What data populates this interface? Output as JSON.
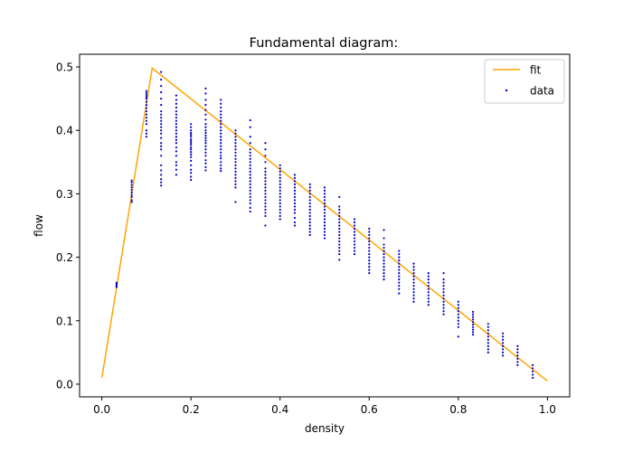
{
  "chart_data": {
    "type": "scatter",
    "title": "Fundamental diagram:",
    "xlabel": "density",
    "ylabel": "flow",
    "xlim": [
      -0.05,
      1.05
    ],
    "ylim": [
      -0.02,
      0.52
    ],
    "xticks": [
      0.0,
      0.2,
      0.4,
      0.6,
      0.8,
      1.0
    ],
    "xtick_labels": [
      "0.0",
      "0.2",
      "0.4",
      "0.6",
      "0.8",
      "1.0"
    ],
    "yticks": [
      0.0,
      0.1,
      0.2,
      0.3,
      0.4,
      0.5
    ],
    "ytick_labels": [
      "0.0",
      "0.1",
      "0.2",
      "0.3",
      "0.4",
      "0.5"
    ],
    "grid": false,
    "legend_position": "top-right",
    "colors": {
      "fit": "#ffa500",
      "data": "#0000cc"
    },
    "series": [
      {
        "name": "fit",
        "kind": "line",
        "x": [
          0.0,
          0.113,
          1.0
        ],
        "y": [
          0.01,
          0.498,
          0.005
        ]
      },
      {
        "name": "data",
        "kind": "scatter",
        "columns": [
          {
            "x": 0.033,
            "y": [
              0.153,
              0.155,
              0.157,
              0.159,
              0.16
            ]
          },
          {
            "x": 0.067,
            "y": [
              0.287,
              0.29,
              0.295,
              0.298,
              0.302,
              0.306,
              0.31,
              0.314,
              0.318,
              0.321
            ]
          },
          {
            "x": 0.1,
            "y": [
              0.39,
              0.395,
              0.4,
              0.41,
              0.415,
              0.42,
              0.425,
              0.43,
              0.435,
              0.44,
              0.445,
              0.45,
              0.453,
              0.456,
              0.459,
              0.462
            ]
          },
          {
            "x": 0.133,
            "y": [
              0.313,
              0.318,
              0.323,
              0.33,
              0.337,
              0.345,
              0.36,
              0.37,
              0.375,
              0.38,
              0.388,
              0.395,
              0.4,
              0.405,
              0.41,
              0.415,
              0.42,
              0.425,
              0.43,
              0.44,
              0.45,
              0.46,
              0.47,
              0.48,
              0.492
            ]
          },
          {
            "x": 0.167,
            "y": [
              0.33,
              0.338,
              0.345,
              0.35,
              0.36,
              0.367,
              0.373,
              0.38,
              0.385,
              0.39,
              0.395,
              0.4,
              0.405,
              0.41,
              0.415,
              0.42,
              0.425,
              0.43,
              0.436,
              0.442,
              0.448,
              0.455
            ]
          },
          {
            "x": 0.2,
            "y": [
              0.322,
              0.327,
              0.333,
              0.338,
              0.345,
              0.352,
              0.358,
              0.362,
              0.366,
              0.37,
              0.373,
              0.377,
              0.38,
              0.383,
              0.386,
              0.39,
              0.393,
              0.396,
              0.4,
              0.405,
              0.41
            ]
          },
          {
            "x": 0.233,
            "y": [
              0.337,
              0.342,
              0.348,
              0.353,
              0.36,
              0.365,
              0.37,
              0.375,
              0.38,
              0.384,
              0.388,
              0.392,
              0.396,
              0.4,
              0.405,
              0.41,
              0.417,
              0.425,
              0.432,
              0.44,
              0.448,
              0.458,
              0.466
            ]
          },
          {
            "x": 0.267,
            "y": [
              0.336,
              0.34,
              0.345,
              0.35,
              0.356,
              0.36,
              0.365,
              0.37,
              0.375,
              0.38,
              0.385,
              0.39,
              0.395,
              0.4,
              0.405,
              0.41,
              0.415,
              0.42,
              0.425,
              0.43,
              0.436,
              0.442,
              0.448
            ]
          },
          {
            "x": 0.3,
            "y": [
              0.287,
              0.31,
              0.315,
              0.32,
              0.325,
              0.33,
              0.335,
              0.34,
              0.345,
              0.35,
              0.355,
              0.36,
              0.365,
              0.37,
              0.375,
              0.38,
              0.385,
              0.39,
              0.395,
              0.4
            ]
          },
          {
            "x": 0.333,
            "y": [
              0.272,
              0.278,
              0.285,
              0.29,
              0.295,
              0.3,
              0.305,
              0.31,
              0.315,
              0.32,
              0.325,
              0.33,
              0.335,
              0.34,
              0.345,
              0.35,
              0.355,
              0.36,
              0.365,
              0.37,
              0.38,
              0.39,
              0.405,
              0.416
            ]
          },
          {
            "x": 0.367,
            "y": [
              0.25,
              0.265,
              0.27,
              0.275,
              0.28,
              0.285,
              0.29,
              0.295,
              0.3,
              0.305,
              0.31,
              0.315,
              0.32,
              0.325,
              0.33,
              0.335,
              0.34,
              0.35,
              0.36,
              0.37,
              0.38
            ]
          },
          {
            "x": 0.4,
            "y": [
              0.26,
              0.265,
              0.27,
              0.275,
              0.28,
              0.285,
              0.29,
              0.295,
              0.3,
              0.305,
              0.31,
              0.315,
              0.32,
              0.325,
              0.33,
              0.335,
              0.34,
              0.345
            ]
          },
          {
            "x": 0.433,
            "y": [
              0.25,
              0.255,
              0.262,
              0.27,
              0.275,
              0.28,
              0.285,
              0.29,
              0.295,
              0.3,
              0.305,
              0.31,
              0.315,
              0.32,
              0.325,
              0.33
            ]
          },
          {
            "x": 0.467,
            "y": [
              0.235,
              0.24,
              0.245,
              0.25,
              0.255,
              0.26,
              0.265,
              0.27,
              0.275,
              0.28,
              0.285,
              0.29,
              0.295,
              0.3,
              0.305,
              0.31,
              0.315
            ]
          },
          {
            "x": 0.5,
            "y": [
              0.23,
              0.235,
              0.24,
              0.245,
              0.25,
              0.255,
              0.26,
              0.265,
              0.27,
              0.275,
              0.28,
              0.285,
              0.29,
              0.295,
              0.3,
              0.305,
              0.31
            ]
          },
          {
            "x": 0.533,
            "y": [
              0.196,
              0.205,
              0.21,
              0.215,
              0.22,
              0.225,
              0.23,
              0.235,
              0.24,
              0.245,
              0.25,
              0.255,
              0.26,
              0.265,
              0.27,
              0.275,
              0.28,
              0.295
            ]
          },
          {
            "x": 0.567,
            "y": [
              0.205,
              0.21,
              0.215,
              0.22,
              0.225,
              0.23,
              0.235,
              0.24,
              0.245,
              0.25,
              0.255,
              0.26
            ]
          },
          {
            "x": 0.6,
            "y": [
              0.175,
              0.18,
              0.185,
              0.19,
              0.195,
              0.2,
              0.205,
              0.21,
              0.215,
              0.22,
              0.225,
              0.23,
              0.235,
              0.24,
              0.245
            ]
          },
          {
            "x": 0.633,
            "y": [
              0.165,
              0.17,
              0.175,
              0.18,
              0.185,
              0.19,
              0.195,
              0.2,
              0.205,
              0.21,
              0.215,
              0.22,
              0.23,
              0.243
            ]
          },
          {
            "x": 0.667,
            "y": [
              0.143,
              0.15,
              0.155,
              0.16,
              0.165,
              0.17,
              0.175,
              0.18,
              0.185,
              0.19,
              0.195,
              0.2,
              0.205,
              0.21
            ]
          },
          {
            "x": 0.7,
            "y": [
              0.13,
              0.135,
              0.14,
              0.145,
              0.15,
              0.155,
              0.16,
              0.165,
              0.17,
              0.175,
              0.18,
              0.185,
              0.19
            ]
          },
          {
            "x": 0.733,
            "y": [
              0.125,
              0.13,
              0.135,
              0.14,
              0.145,
              0.15,
              0.155,
              0.16,
              0.165,
              0.17,
              0.175
            ]
          },
          {
            "x": 0.767,
            "y": [
              0.11,
              0.115,
              0.12,
              0.125,
              0.13,
              0.135,
              0.14,
              0.145,
              0.15,
              0.155,
              0.16,
              0.165,
              0.175
            ]
          },
          {
            "x": 0.8,
            "y": [
              0.075,
              0.09,
              0.095,
              0.1,
              0.105,
              0.11,
              0.115,
              0.12,
              0.125,
              0.13
            ]
          },
          {
            "x": 0.833,
            "y": [
              0.078,
              0.082,
              0.086,
              0.09,
              0.094,
              0.098,
              0.102,
              0.106,
              0.11,
              0.114
            ]
          },
          {
            "x": 0.867,
            "y": [
              0.05,
              0.055,
              0.06,
              0.065,
              0.07,
              0.075,
              0.08,
              0.085,
              0.09,
              0.095
            ]
          },
          {
            "x": 0.9,
            "y": [
              0.045,
              0.05,
              0.055,
              0.06,
              0.065,
              0.07,
              0.075,
              0.08
            ]
          },
          {
            "x": 0.933,
            "y": [
              0.03,
              0.035,
              0.04,
              0.045,
              0.05,
              0.055,
              0.06
            ]
          },
          {
            "x": 0.967,
            "y": [
              0.01,
              0.015,
              0.02,
              0.025,
              0.03
            ]
          }
        ]
      }
    ]
  }
}
